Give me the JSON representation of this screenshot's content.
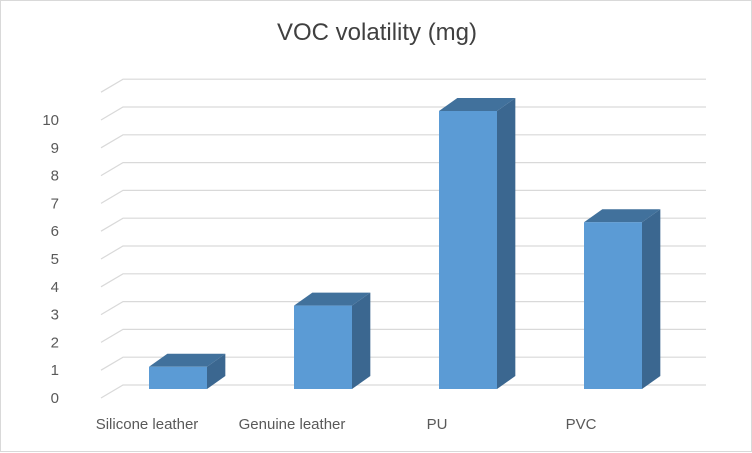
{
  "chart_data": {
    "type": "bar",
    "title": "VOC volatility (mg)",
    "categories": [
      "Silicone leather",
      "Genuine leather",
      "PU",
      "PVC"
    ],
    "values": [
      0.8,
      3,
      10,
      6
    ],
    "ylim": [
      0,
      10
    ],
    "yticks": [
      "0",
      "1",
      "2",
      "3",
      "4",
      "5",
      "6",
      "7",
      "8",
      "9",
      "10"
    ],
    "grid": true,
    "legend": "none",
    "colors": {
      "front": "#5b9bd5",
      "top": "#41719c",
      "side": "#3b6790",
      "grid": "#d9d9d9"
    }
  }
}
